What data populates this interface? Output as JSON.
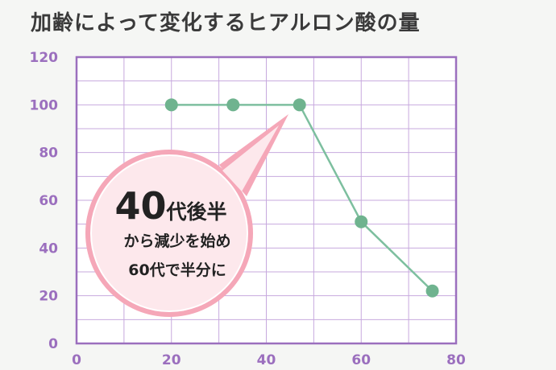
{
  "chart_data": {
    "type": "line",
    "title": "加齢によって変化するヒアルロン酸の量",
    "xlabel": "",
    "ylabel": "",
    "xlim": [
      0,
      80
    ],
    "ylim": [
      0,
      120
    ],
    "x_ticks": [
      0,
      20,
      40,
      60,
      80
    ],
    "y_ticks": [
      0,
      20,
      40,
      60,
      80,
      100,
      120
    ],
    "grid": true,
    "series": [
      {
        "x": [
          20,
          33,
          47,
          60,
          75
        ],
        "values": [
          100,
          100,
          100,
          51,
          22
        ]
      }
    ],
    "annotation": {
      "big_number": "40",
      "big_suffix": "代後半",
      "line2": "から減少を始め",
      "line3": "60代で半分に"
    }
  },
  "colors": {
    "axis": "#9b6fbe",
    "grid": "#c7a9de",
    "line": "#7dbf9f",
    "point": "#6fb38f",
    "callout_fill": "#fde8ec",
    "callout_border": "#f5a7b8",
    "plot_bg": "#ffffff"
  }
}
